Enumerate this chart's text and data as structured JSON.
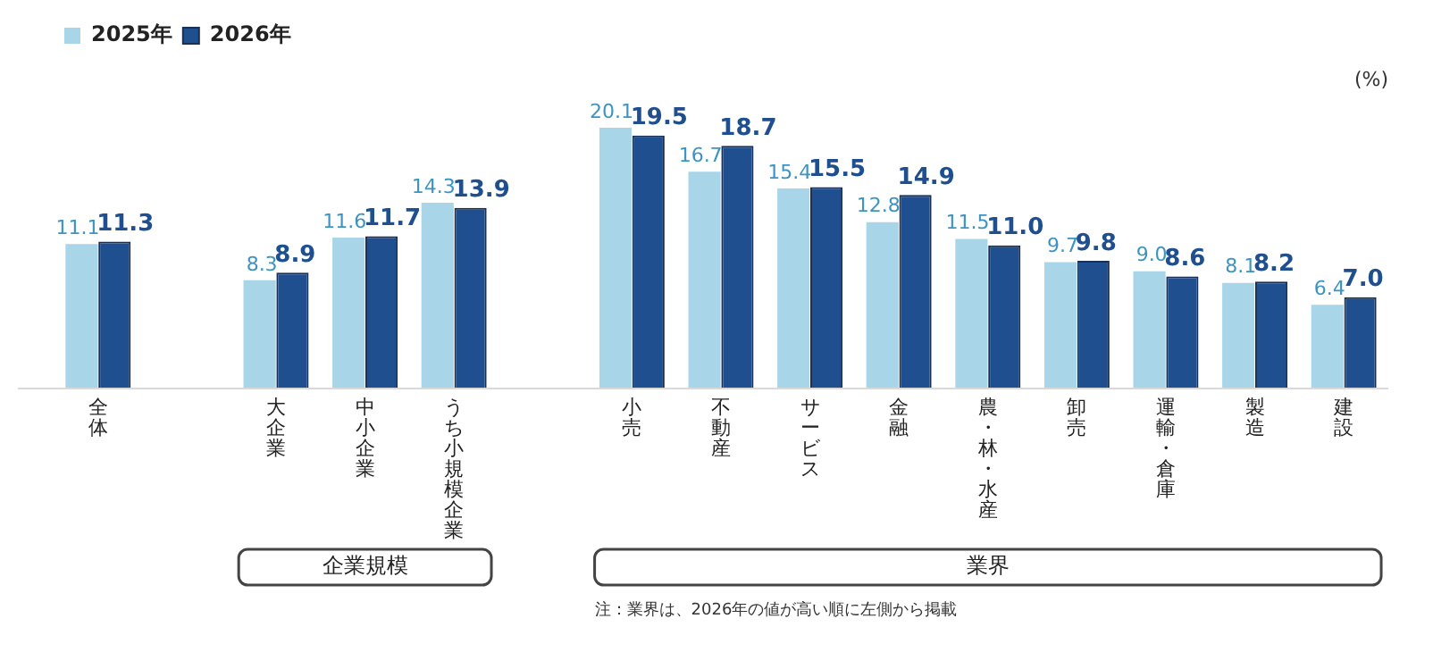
{
  "chart_data": {
    "type": "bar",
    "ylabel": "(%)",
    "categories": [
      "全体",
      null,
      "大企業",
      "中小企業",
      "うち小規模企業",
      null,
      "小売",
      "不動産",
      "サービス",
      "金融",
      "農・林・水産",
      "卸売",
      "運輸・倉庫",
      "製造",
      "建設"
    ],
    "series": [
      {
        "name": "2025年",
        "color": "#a9d5e9",
        "values": [
          11.1,
          null,
          8.3,
          11.6,
          14.3,
          null,
          20.1,
          16.7,
          15.4,
          12.8,
          11.5,
          9.7,
          9.0,
          8.1,
          6.4
        ],
        "value_labels": [
          "11.1",
          null,
          "8.3",
          "11.6",
          "14.3",
          null,
          "20.1",
          "16.7",
          "15.4",
          "12.8",
          "11.5",
          "9.7",
          "9.0",
          "8.1",
          "6.4"
        ]
      },
      {
        "name": "2026年",
        "color": "#1f4f8e",
        "values": [
          11.3,
          null,
          8.9,
          11.7,
          13.9,
          null,
          19.5,
          18.7,
          15.5,
          14.9,
          11.0,
          9.8,
          8.6,
          8.2,
          7.0
        ],
        "value_labels": [
          "11.3",
          null,
          "8.9",
          "11.7",
          "13.9",
          null,
          "19.5",
          "18.7",
          "15.5",
          "14.9",
          "11.0",
          "9.8",
          "8.6",
          "8.2",
          "7.0"
        ]
      }
    ],
    "legend": "top left",
    "annotations": [
      "企業規模",
      "業界",
      "注：業界は、2026年の値が高い順に左側から掲載"
    ]
  }
}
